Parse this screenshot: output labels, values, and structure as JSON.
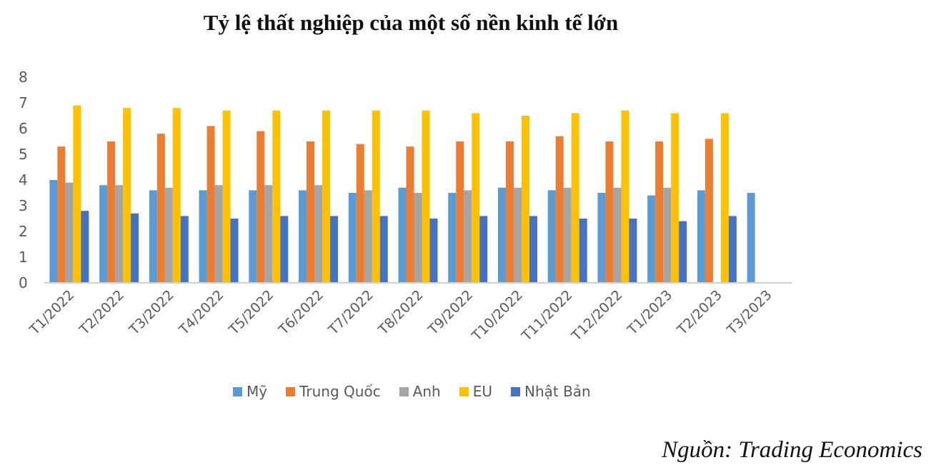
{
  "chart_data": {
    "type": "bar",
    "title": "Tỷ lệ thất nghiệp của một số nền kinh tế lớn",
    "xlabel": "",
    "ylabel": "",
    "ylim": [
      0,
      8
    ],
    "yticks": [
      0,
      1,
      2,
      3,
      4,
      5,
      6,
      7,
      8
    ],
    "grid": false,
    "legend_position": "bottom",
    "categories": [
      "T1/2022",
      "T2/2022",
      "T3/2022",
      "T4/2022",
      "T5/2022",
      "T6/2022",
      "T7/2022",
      "T8/2022",
      "T9/2022",
      "T10/2022",
      "T11/2022",
      "T12/2022",
      "T1/2023",
      "T2/2023",
      "T3/2023"
    ],
    "series": [
      {
        "name": "Mỹ",
        "color": "#5B9BD5",
        "values": [
          4.0,
          3.8,
          3.6,
          3.6,
          3.6,
          3.6,
          3.5,
          3.7,
          3.5,
          3.7,
          3.6,
          3.5,
          3.4,
          3.6,
          3.5
        ]
      },
      {
        "name": "Trung Quốc",
        "color": "#ED7D31",
        "values": [
          5.3,
          5.5,
          5.8,
          6.1,
          5.9,
          5.5,
          5.4,
          5.3,
          5.5,
          5.5,
          5.7,
          5.5,
          5.5,
          5.6,
          null
        ]
      },
      {
        "name": "Anh",
        "color": "#A5A5A5",
        "values": [
          3.9,
          3.8,
          3.7,
          3.8,
          3.8,
          3.8,
          3.6,
          3.5,
          3.6,
          3.7,
          3.7,
          3.7,
          3.7,
          null,
          null
        ]
      },
      {
        "name": "EU",
        "color": "#FFC000",
        "values": [
          6.9,
          6.8,
          6.8,
          6.7,
          6.7,
          6.7,
          6.7,
          6.7,
          6.6,
          6.5,
          6.6,
          6.7,
          6.6,
          6.6,
          null
        ]
      },
      {
        "name": "Nhật Bản",
        "color": "#4472C4",
        "values": [
          2.8,
          2.7,
          2.6,
          2.5,
          2.6,
          2.6,
          2.6,
          2.5,
          2.6,
          2.6,
          2.5,
          2.5,
          2.4,
          2.6,
          null
        ]
      }
    ]
  },
  "source": "Nguồn: Trading Economics"
}
